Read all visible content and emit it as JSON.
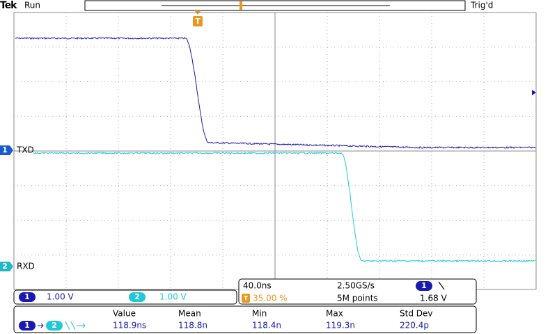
{
  "status": {
    "brand": "Tek",
    "state": "Run",
    "trigger_state": "Trig'd"
  },
  "channels": [
    {
      "number": "1",
      "label": "TXD",
      "scale": "1.00 V"
    },
    {
      "number": "2",
      "label": "RXD",
      "scale": "1.00 V"
    }
  ],
  "trigger": {
    "marker": "T",
    "position": "35.00 %",
    "level": "1.68 V"
  },
  "timebase": {
    "scale": "40.0ns",
    "sample_rate": "2.50GS/s",
    "record_length": "5M points"
  },
  "measurement": {
    "headers": [
      "Value",
      "Mean",
      "Min",
      "Max",
      "Std Dev"
    ],
    "values": [
      "118.9ns",
      "118.8n",
      "118.4n",
      "119.3n",
      "220.4p"
    ]
  }
}
